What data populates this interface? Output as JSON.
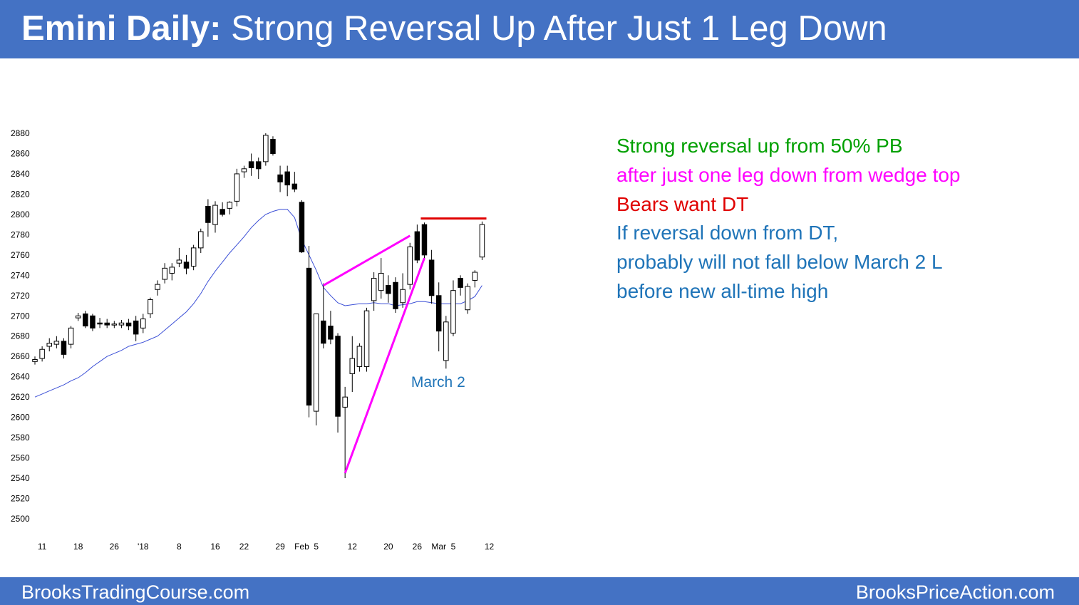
{
  "header": {
    "title_bold": "Emini Daily:",
    "title_rest": " Strong Reversal Up After Just 1 Leg Down",
    "bg_color": "#4472c4"
  },
  "footer": {
    "left": "BrooksTradingCourse.com",
    "right": "BrooksPriceAction.com"
  },
  "annotations": [
    {
      "text": "Strong reversal up from 50% PB",
      "color": "#00a000"
    },
    {
      "text": "after just one leg down from wedge top",
      "color": "#ff00ff"
    },
    {
      "text": "Bears want DT",
      "color": "#e00000"
    },
    {
      "text": "If reversal down from DT,",
      "color": "#1f74b8"
    },
    {
      "text": "probably will not fall below March 2 L",
      "color": "#1f74b8"
    },
    {
      "text": "before new all-time high",
      "color": "#1f74b8"
    }
  ],
  "chart_data": {
    "type": "candlestick",
    "ylim": [
      2500,
      2880
    ],
    "ytick_labels": [
      "2880",
      "2860",
      "2840",
      "2820",
      "2800",
      "2780",
      "2760",
      "2740",
      "2720",
      "2700",
      "2680",
      "2660",
      "2640",
      "2620",
      "2600",
      "2580",
      "2560",
      "2540",
      "2520",
      "2500"
    ],
    "xtick_labels": [
      {
        "label": "11",
        "i": 1
      },
      {
        "label": "18",
        "i": 6
      },
      {
        "label": "26",
        "i": 11
      },
      {
        "label": "'18",
        "i": 15
      },
      {
        "label": "8",
        "i": 20
      },
      {
        "label": "16",
        "i": 25
      },
      {
        "label": "22",
        "i": 29
      },
      {
        "label": "29",
        "i": 34
      },
      {
        "label": "Feb",
        "i": 37
      },
      {
        "label": "5",
        "i": 39
      },
      {
        "label": "12",
        "i": 44
      },
      {
        "label": "20",
        "i": 49
      },
      {
        "label": "26",
        "i": 53
      },
      {
        "label": "Mar",
        "i": 56
      },
      {
        "label": "5",
        "i": 58
      },
      {
        "label": "12",
        "i": 63
      }
    ],
    "candles": [
      [
        2655,
        2660,
        2652,
        2657
      ],
      [
        2658,
        2670,
        2655,
        2667
      ],
      [
        2670,
        2678,
        2665,
        2673
      ],
      [
        2672,
        2680,
        2668,
        2675
      ],
      [
        2675,
        2678,
        2658,
        2662
      ],
      [
        2672,
        2690,
        2668,
        2688
      ],
      [
        2698,
        2703,
        2695,
        2700
      ],
      [
        2702,
        2705,
        2688,
        2690
      ],
      [
        2700,
        2702,
        2685,
        2688
      ],
      [
        2693,
        2698,
        2688,
        2692
      ],
      [
        2693,
        2697,
        2688,
        2691
      ],
      [
        2691,
        2695,
        2688,
        2692
      ],
      [
        2691,
        2696,
        2688,
        2693
      ],
      [
        2693,
        2697,
        2686,
        2690
      ],
      [
        2695,
        2700,
        2675,
        2682
      ],
      [
        2688,
        2702,
        2683,
        2697
      ],
      [
        2702,
        2718,
        2698,
        2716
      ],
      [
        2726,
        2735,
        2720,
        2731
      ],
      [
        2736,
        2752,
        2732,
        2747
      ],
      [
        2742,
        2752,
        2735,
        2748
      ],
      [
        2752,
        2767,
        2748,
        2755
      ],
      [
        2753,
        2760,
        2741,
        2747
      ],
      [
        2749,
        2770,
        2745,
        2767
      ],
      [
        2767,
        2786,
        2762,
        2783
      ],
      [
        2808,
        2815,
        2778,
        2792
      ],
      [
        2790,
        2813,
        2782,
        2809
      ],
      [
        2805,
        2812,
        2798,
        2800
      ],
      [
        2806,
        2813,
        2800,
        2812
      ],
      [
        2813,
        2845,
        2808,
        2840
      ],
      [
        2842,
        2848,
        2836,
        2845
      ],
      [
        2852,
        2860,
        2838,
        2846
      ],
      [
        2852,
        2856,
        2835,
        2845
      ],
      [
        2852,
        2880,
        2848,
        2878
      ],
      [
        2874,
        2877,
        2858,
        2860
      ],
      [
        2839,
        2848,
        2822,
        2832
      ],
      [
        2842,
        2848,
        2818,
        2829
      ],
      [
        2830,
        2842,
        2822,
        2825
      ],
      [
        2812,
        2814,
        2762,
        2763
      ],
      [
        2747,
        2769,
        2600,
        2612
      ],
      [
        2606,
        2701,
        2592,
        2702
      ],
      [
        2695,
        2732,
        2668,
        2673
      ],
      [
        2690,
        2705,
        2672,
        2677
      ],
      [
        2680,
        2683,
        2585,
        2601
      ],
      [
        2610,
        2630,
        2540,
        2620
      ],
      [
        2643,
        2680,
        2625,
        2658
      ],
      [
        2650,
        2673,
        2645,
        2670
      ],
      [
        2650,
        2708,
        2645,
        2705
      ],
      [
        2715,
        2743,
        2705,
        2737
      ],
      [
        2725,
        2757,
        2717,
        2742
      ],
      [
        2730,
        2740,
        2713,
        2722
      ],
      [
        2733,
        2738,
        2703,
        2707
      ],
      [
        2713,
        2742,
        2708,
        2726
      ],
      [
        2731,
        2772,
        2726,
        2768
      ],
      [
        2783,
        2790,
        2752,
        2755
      ],
      [
        2790,
        2792,
        2755,
        2760
      ],
      [
        2755,
        2765,
        2712,
        2720
      ],
      [
        2720,
        2733,
        2665,
        2685
      ],
      [
        2656,
        2700,
        2648,
        2694
      ],
      [
        2683,
        2735,
        2680,
        2725
      ],
      [
        2737,
        2740,
        2720,
        2728
      ],
      [
        2706,
        2732,
        2702,
        2729
      ],
      [
        2735,
        2745,
        2728,
        2743
      ],
      [
        2758,
        2793,
        2755,
        2790
      ]
    ],
    "ma20": [
      2620,
      2623,
      2626,
      2629,
      2632,
      2636,
      2639,
      2644,
      2650,
      2655,
      2660,
      2663,
      2666,
      2670,
      2672,
      2674,
      2677,
      2680,
      2686,
      2692,
      2698,
      2704,
      2712,
      2722,
      2734,
      2744,
      2753,
      2762,
      2770,
      2778,
      2787,
      2794,
      2800,
      2803,
      2805,
      2805,
      2797,
      2775,
      2760,
      2745,
      2728,
      2720,
      2713,
      2710,
      2711,
      2712,
      2712,
      2713,
      2712,
      2712,
      2710,
      2711,
      2712,
      2714,
      2714,
      2713,
      2712,
      2712,
      2712,
      2712,
      2715,
      2719,
      2730
    ],
    "lines": [
      {
        "name": "wedge-upper",
        "color": "#ff00ff",
        "from": [
          40,
          2730
        ],
        "to": [
          52,
          2779
        ]
      },
      {
        "name": "wedge-lower",
        "color": "#ff00ff",
        "from": [
          43,
          2545
        ],
        "to": [
          54,
          2757
        ]
      },
      {
        "name": "double-top",
        "color": "#e00000",
        "from": [
          53.5,
          2796
        ],
        "to": [
          62.6,
          2796
        ]
      }
    ],
    "label": {
      "text": "March 2",
      "color": "#1f74b8",
      "at": [
        57.5,
        2635
      ]
    }
  }
}
